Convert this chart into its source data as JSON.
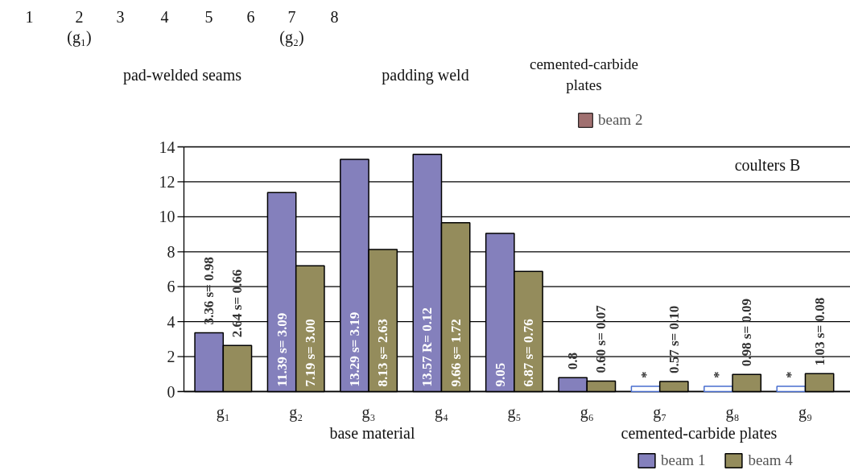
{
  "chart_data": {
    "type": "bar",
    "categories": [
      "g₁",
      "g₂",
      "g₃",
      "g₄",
      "g₅",
      "g₆",
      "g₇",
      "g₈",
      "g₉"
    ],
    "series": [
      {
        "name": "beam 1",
        "color": "#8480bc",
        "colors": [
          "#8480bc",
          "#8480bc",
          "#8480bc",
          "#8480bc",
          "#8480bc",
          "#8480bc",
          "#ffffff",
          "#ffffff",
          "#ffffff"
        ],
        "values": [
          3.36,
          11.39,
          13.29,
          13.57,
          9.05,
          0.8,
          0.3,
          0.3,
          0.3
        ],
        "value_labels": [
          "3.36 s= 0.98",
          "11.39 s= 3.09",
          "13.29 s= 3.19",
          "13.57 R= 0.12",
          "9.05",
          "0.8",
          "*",
          "*",
          "*"
        ]
      },
      {
        "name": "beam 4",
        "color": "#948c5c",
        "values": [
          2.64,
          7.19,
          8.13,
          9.66,
          6.87,
          0.6,
          0.57,
          0.98,
          1.03
        ],
        "value_labels": [
          "2.64 s= 0.66",
          "7.19 s= 3.00",
          "8.13 s= 2.63",
          "9.66 s= 1.72",
          "6.87 s= 0.76",
          "0.60 s= 0.07",
          "0.57 s= 0.10",
          "0.98 s= 0.09",
          "1.03 s= 0.08"
        ]
      },
      {
        "name": "beam 2",
        "color": "#a07070",
        "values": [
          null,
          null,
          null,
          null,
          null,
          null,
          null,
          null,
          null
        ]
      }
    ],
    "ylim": [
      0,
      14
    ],
    "yticks": [
      0,
      2,
      4,
      6,
      8,
      10,
      12,
      14
    ],
    "grid": "y",
    "legend": "bottom right",
    "annotations": [
      "1",
      "2",
      "(g₁)",
      "3",
      "4",
      "5",
      "6",
      "7",
      "(g₂)",
      "8",
      "pad-welded seams",
      "padding weld",
      "cemented-carbide plates",
      "coulters B",
      "base material",
      "cemented-carbide plates"
    ]
  }
}
